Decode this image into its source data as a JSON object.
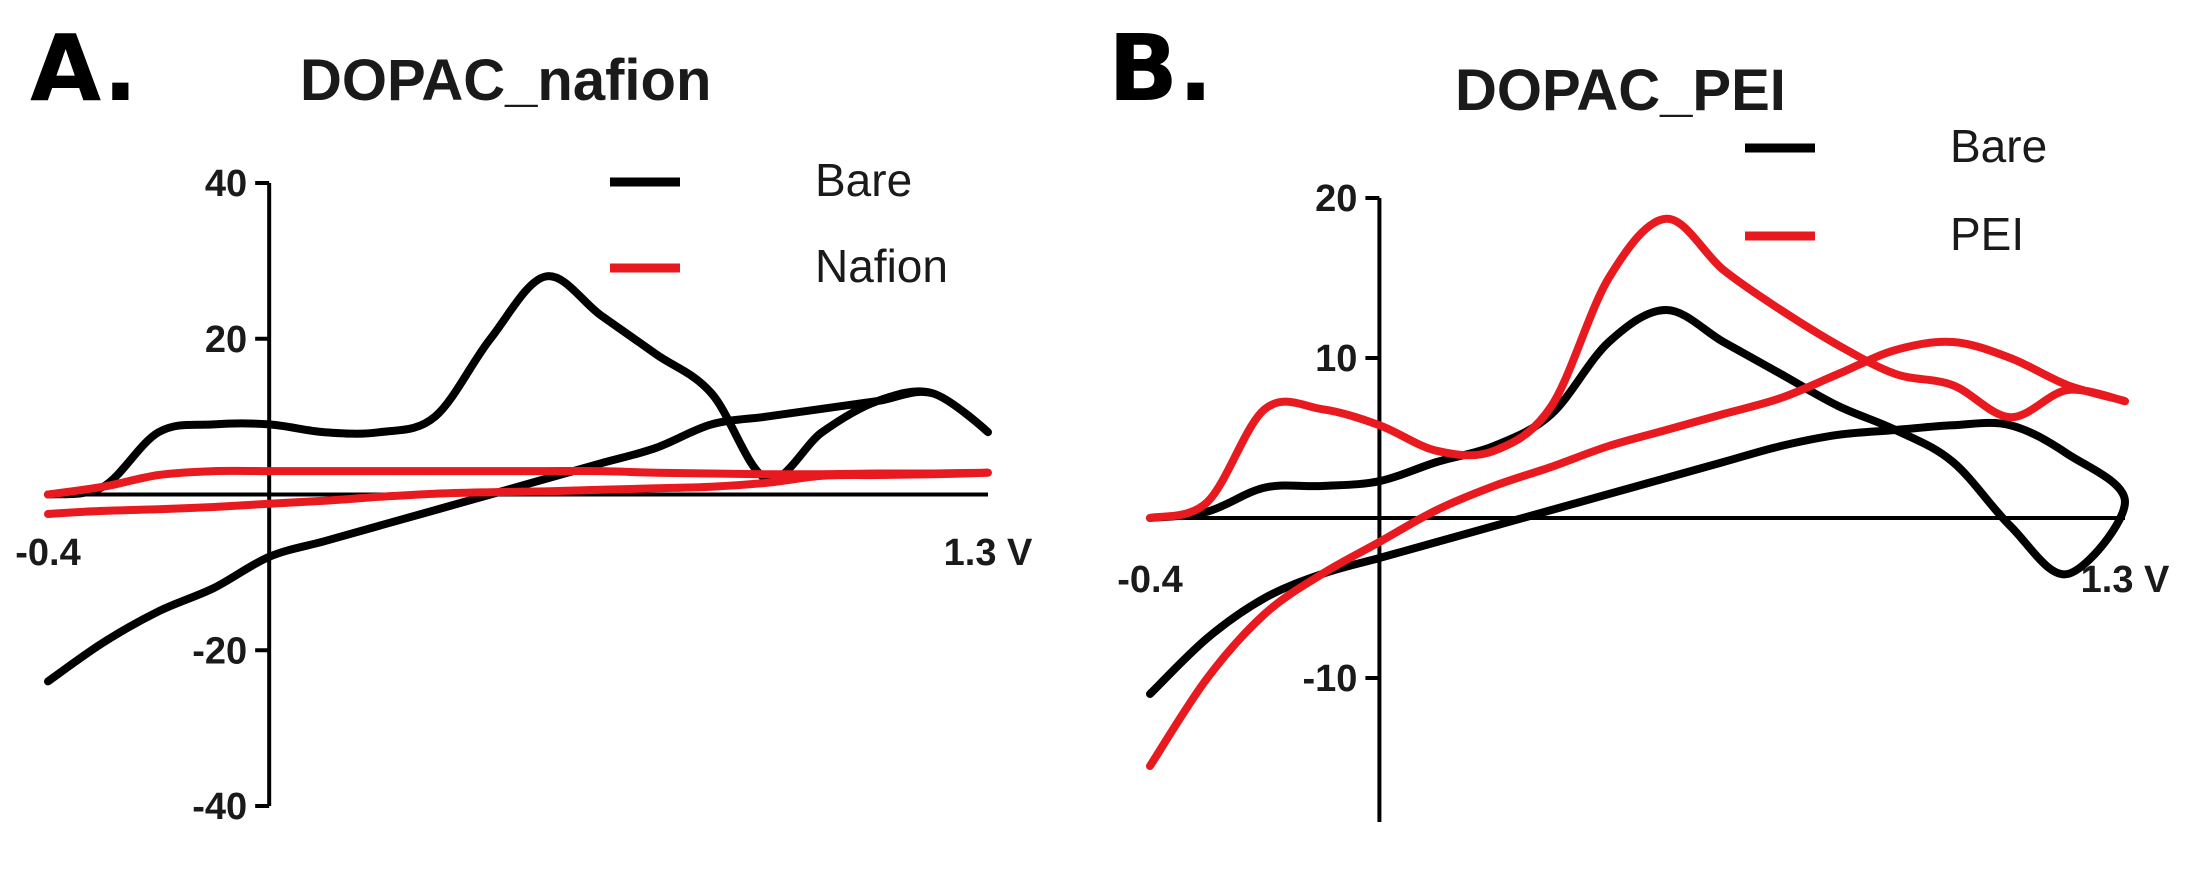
{
  "chart_data": [
    {
      "panel_label": "A.",
      "type": "line",
      "title": "DOPAC_nafion",
      "xlabel": "",
      "ylabel": "",
      "x_tick_labels": [
        "-0.4",
        "1.3 V"
      ],
      "xlim": [
        -0.4,
        1.3
      ],
      "ylim": [
        -40,
        40
      ],
      "y_ticks": [
        40,
        20,
        -20,
        -40
      ],
      "legend_position": "top-right",
      "series": [
        {
          "name": "Bare",
          "color": "#000000",
          "x": [
            -0.4,
            -0.3,
            -0.2,
            -0.1,
            0.0,
            0.1,
            0.2,
            0.3,
            0.4,
            0.5,
            0.6,
            0.7,
            0.8,
            0.9,
            1.0,
            1.1,
            1.2,
            1.3,
            1.2,
            1.1,
            1.0,
            0.9,
            0.8,
            0.7,
            0.6,
            0.5,
            0.4,
            0.3,
            0.2,
            0.1,
            0.0,
            -0.1,
            -0.2,
            -0.3,
            -0.4
          ],
          "y": [
            0,
            1,
            8,
            9,
            9,
            8,
            8,
            10,
            20,
            28,
            23,
            18,
            13,
            2,
            8,
            12,
            13,
            8,
            13,
            12,
            11,
            10,
            9,
            6,
            4,
            2,
            0,
            -2,
            -4,
            -6,
            -8,
            -12,
            -15,
            -19,
            -24
          ]
        },
        {
          "name": "Nafion",
          "color": "#e8191f",
          "x": [
            -0.4,
            -0.3,
            -0.2,
            -0.1,
            0.0,
            0.1,
            0.2,
            0.3,
            0.4,
            0.5,
            0.6,
            0.7,
            0.8,
            0.9,
            1.0,
            1.1,
            1.2,
            1.3,
            1.2,
            1.1,
            1.0,
            0.9,
            0.8,
            0.7,
            0.6,
            0.5,
            0.4,
            0.3,
            0.2,
            0.1,
            0.0,
            -0.1,
            -0.2,
            -0.3,
            -0.4
          ],
          "y": [
            0,
            1,
            2.5,
            3,
            3,
            3,
            3,
            3,
            3,
            3,
            3,
            2.8,
            2.7,
            2.6,
            2.6,
            2.7,
            2.7,
            2.8,
            2.6,
            2.5,
            2.4,
            1.5,
            1.0,
            0.8,
            0.6,
            0.4,
            0.3,
            0.1,
            -0.3,
            -0.8,
            -1.2,
            -1.6,
            -1.9,
            -2.1,
            -2.5
          ]
        }
      ]
    },
    {
      "panel_label": "B.",
      "type": "line",
      "title": "DOPAC_PEI",
      "xlabel": "",
      "ylabel": "",
      "x_tick_labels": [
        "-0.4",
        "1.3 V"
      ],
      "xlim": [
        -0.4,
        1.3
      ],
      "ylim": [
        -19,
        20
      ],
      "y_ticks": [
        20,
        10,
        -10
      ],
      "legend_position": "top-right",
      "series": [
        {
          "name": "Bare",
          "color": "#000000",
          "x": [
            -0.4,
            -0.3,
            -0.2,
            -0.1,
            0.0,
            0.1,
            0.2,
            0.3,
            0.4,
            0.5,
            0.6,
            0.7,
            0.8,
            0.9,
            1.0,
            1.1,
            1.2,
            1.3,
            1.2,
            1.1,
            1.0,
            0.9,
            0.8,
            0.7,
            0.6,
            0.5,
            0.4,
            0.3,
            0.2,
            0.1,
            0.0,
            -0.1,
            -0.2,
            -0.3,
            -0.4
          ],
          "y": [
            0,
            0.4,
            1.9,
            2.0,
            2.3,
            3.5,
            4.5,
            6.5,
            11,
            13,
            11,
            9,
            7,
            5.5,
            3.5,
            -0.5,
            -3.5,
            1,
            4,
            5.8,
            5.8,
            5.5,
            5.2,
            4.5,
            3.5,
            2.5,
            1.5,
            0.5,
            -0.5,
            -1.5,
            -2.5,
            -3.5,
            -5,
            -7.5,
            -11
          ]
        },
        {
          "name": "PEI",
          "color": "#e8191f",
          "x": [
            -0.4,
            -0.3,
            -0.2,
            -0.1,
            0.0,
            0.1,
            0.2,
            0.3,
            0.4,
            0.5,
            0.6,
            0.7,
            0.8,
            0.9,
            1.0,
            1.1,
            1.2,
            1.3,
            1.2,
            1.1,
            1.0,
            0.9,
            0.8,
            0.7,
            0.6,
            0.5,
            0.4,
            0.3,
            0.2,
            0.1,
            0.0,
            -0.1,
            -0.2,
            -0.3,
            -0.4
          ],
          "y": [
            0,
            1,
            6.8,
            6.8,
            5.8,
            4.2,
            4.2,
            7,
            15,
            18.7,
            15.5,
            13,
            10.8,
            9,
            8.3,
            6.3,
            8,
            7.3,
            8.3,
            10,
            11,
            10.5,
            9,
            7.5,
            6.5,
            5.5,
            4.5,
            3.2,
            2,
            0.5,
            -1.5,
            -3.5,
            -6,
            -10,
            -15.5
          ]
        }
      ]
    }
  ]
}
